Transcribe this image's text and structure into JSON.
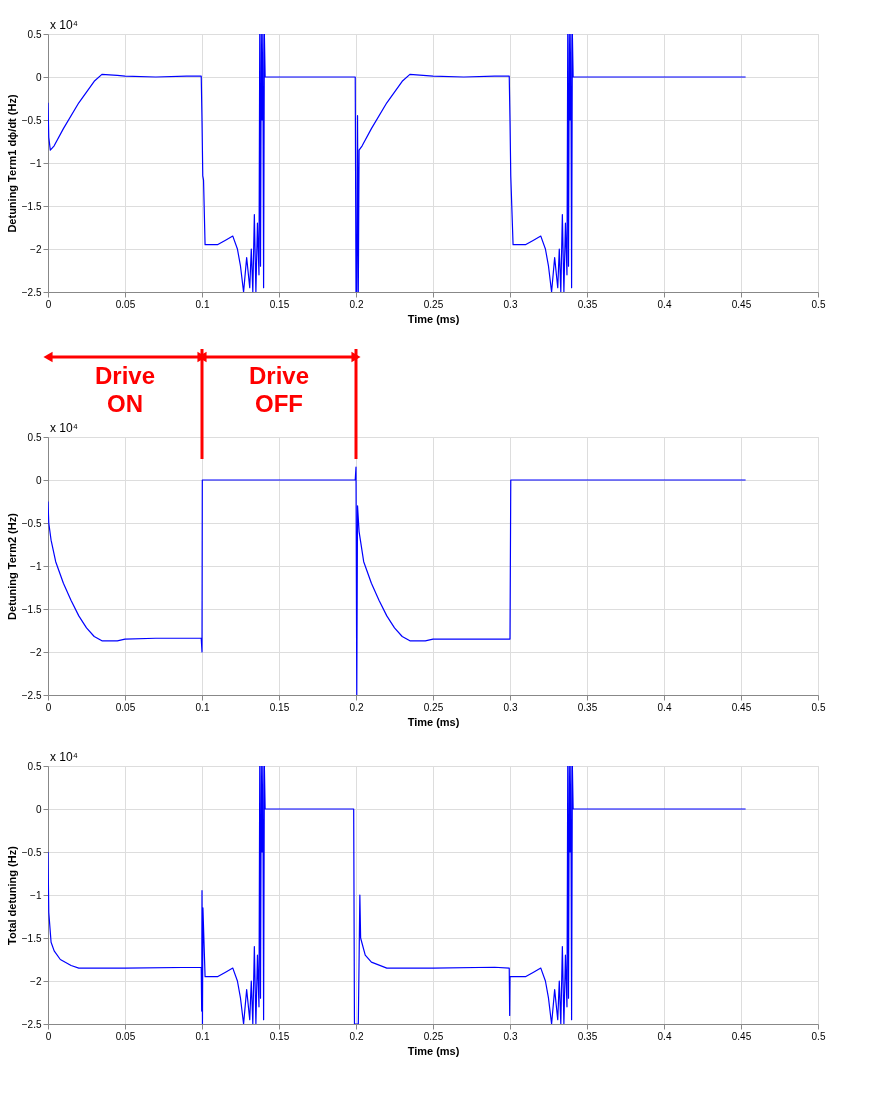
{
  "chart_data": [
    {
      "type": "line",
      "xlabel": "Time (ms)",
      "ylabel": "Detuning Term1 dϕ/dt (Hz)",
      "xlim": [
        0,
        0.5
      ],
      "ylim": [
        -2.5,
        0.5
      ],
      "xticks": [
        0,
        0.05,
        0.1,
        0.15,
        0.2,
        0.25,
        0.3,
        0.35,
        0.4,
        0.45,
        0.5
      ],
      "yticks": [
        -2.5,
        -2,
        -1.5,
        -1,
        -0.5,
        0,
        0.5
      ],
      "grid": true,
      "annotations": [
        "x 10⁴"
      ],
      "series": [
        {
          "color": "#0000ff",
          "x": [
            0,
            0.0005,
            0.0015,
            0.004,
            0.01,
            0.02,
            0.03,
            0.035,
            0.045,
            0.05,
            0.07,
            0.09,
            0.0995,
            0.1,
            0.1005,
            0.101,
            0.102,
            0.11,
            0.115,
            0.12,
            0.123,
            0.125,
            0.127,
            0.129,
            0.131,
            0.132,
            0.133,
            0.134,
            0.135,
            0.136,
            0.137,
            0.1375,
            0.138,
            0.1385,
            0.139,
            0.1395,
            0.14,
            0.1405,
            0.141,
            0.1995,
            0.2,
            0.2005,
            0.201,
            0.2015,
            0.202,
            0.204,
            0.21,
            0.22,
            0.23,
            0.235,
            0.25,
            0.27,
            0.29,
            0.2995,
            0.3,
            0.3005,
            0.302,
            0.31,
            0.315,
            0.32,
            0.323,
            0.325,
            0.327,
            0.329,
            0.331,
            0.332,
            0.333,
            0.334,
            0.335,
            0.336,
            0.337,
            0.3375,
            0.338,
            0.3385,
            0.339,
            0.3395,
            0.34,
            0.3405,
            0.341,
            0.453
          ],
          "values": [
            -0.3,
            -0.7,
            -0.85,
            -0.8,
            -0.6,
            -0.3,
            -0.05,
            0.03,
            0.02,
            0.01,
            0,
            0.01,
            0.01,
            -0.5,
            -1.15,
            -1.2,
            -1.95,
            -1.95,
            -1.9,
            -1.85,
            -2,
            -2.2,
            -2.5,
            -2.1,
            -2.45,
            -2,
            -2.5,
            -1.6,
            -2.5,
            -1.7,
            -2.3,
            0.5,
            -2.2,
            0.5,
            -0.5,
            0.5,
            -2.45,
            0.5,
            0,
            0,
            -2.5,
            -2.5,
            -0.45,
            -2.5,
            -0.85,
            -0.8,
            -0.6,
            -0.3,
            -0.05,
            0.03,
            0.01,
            0,
            0.01,
            0.01,
            -0.5,
            -1.15,
            -1.95,
            -1.95,
            -1.9,
            -1.85,
            -2,
            -2.2,
            -2.5,
            -2.1,
            -2.45,
            -2,
            -2.5,
            -1.6,
            -2.5,
            -1.7,
            -2.3,
            0.5,
            -2.2,
            0.5,
            -0.5,
            0.5,
            -2.45,
            0.5,
            0,
            0
          ]
        }
      ]
    },
    {
      "type": "line",
      "xlabel": "Time (ms)",
      "ylabel": "Detuning Term2 (Hz)",
      "xlim": [
        0,
        0.5
      ],
      "ylim": [
        -2.5,
        0.5
      ],
      "xticks": [
        0,
        0.05,
        0.1,
        0.15,
        0.2,
        0.25,
        0.3,
        0.35,
        0.4,
        0.45,
        0.5
      ],
      "yticks": [
        -2.5,
        -2,
        -1.5,
        -1,
        -0.5,
        0,
        0.5
      ],
      "grid": true,
      "annotations": [
        "x 10⁴",
        "Drive ON",
        "Drive OFF"
      ],
      "ref_lines": [
        {
          "axis": "x",
          "value": 0.1,
          "color": "#ff0000"
        },
        {
          "axis": "x",
          "value": 0.2,
          "color": "#ff0000"
        }
      ],
      "series": [
        {
          "color": "#0000ff",
          "x": [
            0,
            0.0005,
            0.002,
            0.005,
            0.01,
            0.015,
            0.02,
            0.025,
            0.03,
            0.035,
            0.045,
            0.05,
            0.07,
            0.0995,
            0.1,
            0.1002,
            0.1995,
            0.2,
            0.2005,
            0.201,
            0.202,
            0.205,
            0.21,
            0.215,
            0.22,
            0.225,
            0.23,
            0.235,
            0.245,
            0.25,
            0.27,
            0.3,
            0.3005,
            0.453
          ],
          "values": [
            -0.25,
            -0.5,
            -0.7,
            -0.95,
            -1.2,
            -1.4,
            -1.58,
            -1.72,
            -1.82,
            -1.87,
            -1.87,
            -1.85,
            -1.84,
            -1.84,
            -2,
            0,
            0,
            0.15,
            -2.5,
            -0.3,
            -0.6,
            -0.95,
            -1.2,
            -1.4,
            -1.58,
            -1.72,
            -1.82,
            -1.87,
            -1.87,
            -1.85,
            -1.85,
            -1.85,
            0,
            0
          ]
        }
      ]
    },
    {
      "type": "line",
      "xlabel": "Time (ms)",
      "ylabel": "Total detuning (Hz)",
      "xlim": [
        0,
        0.5
      ],
      "ylim": [
        -2.5,
        0.5
      ],
      "xticks": [
        0,
        0.05,
        0.1,
        0.15,
        0.2,
        0.25,
        0.3,
        0.35,
        0.4,
        0.45,
        0.5
      ],
      "yticks": [
        -2.5,
        -2,
        -1.5,
        -1,
        -0.5,
        0,
        0.5
      ],
      "grid": true,
      "annotations": [
        "x 10⁴"
      ],
      "series": [
        {
          "color": "#0000ff",
          "x": [
            0,
            0.0005,
            0.002,
            0.004,
            0.008,
            0.015,
            0.02,
            0.05,
            0.0995,
            0.0998,
            0.1,
            0.1003,
            0.1006,
            0.102,
            0.11,
            0.115,
            0.12,
            0.123,
            0.125,
            0.127,
            0.129,
            0.131,
            0.132,
            0.133,
            0.134,
            0.135,
            0.136,
            0.137,
            0.1375,
            0.138,
            0.1385,
            0.139,
            0.1395,
            0.14,
            0.1405,
            0.141,
            0.1985,
            0.199,
            0.2015,
            0.2025,
            0.203,
            0.206,
            0.21,
            0.22,
            0.25,
            0.29,
            0.2995,
            0.2998,
            0.3,
            0.31,
            0.315,
            0.32,
            0.323,
            0.325,
            0.327,
            0.329,
            0.331,
            0.332,
            0.333,
            0.334,
            0.335,
            0.336,
            0.337,
            0.3375,
            0.338,
            0.3385,
            0.339,
            0.3395,
            0.34,
            0.3405,
            0.341,
            0.453
          ],
          "values": [
            -0.5,
            -1.2,
            -1.55,
            -1.65,
            -1.75,
            -1.82,
            -1.85,
            -1.85,
            -1.84,
            -2.35,
            -0.95,
            -2.5,
            -1.15,
            -1.95,
            -1.95,
            -1.9,
            -1.85,
            -2,
            -2.2,
            -2.5,
            -2.1,
            -2.45,
            -2,
            -2.5,
            -1.6,
            -2.5,
            -1.7,
            -2.3,
            0.5,
            -2.2,
            0.5,
            -0.5,
            0.5,
            -2.45,
            0.5,
            0,
            0,
            -2.5,
            -2.5,
            -1,
            -1.5,
            -1.7,
            -1.78,
            -1.85,
            -1.85,
            -1.84,
            -1.85,
            -2.4,
            -1.95,
            -1.95,
            -1.9,
            -1.85,
            -2,
            -2.2,
            -2.5,
            -2.1,
            -2.45,
            -2,
            -2.5,
            -1.6,
            -2.5,
            -1.7,
            -2.3,
            0.5,
            -2.2,
            0.5,
            -0.5,
            0.5,
            -2.45,
            0.5,
            0,
            0
          ]
        }
      ]
    }
  ]
}
